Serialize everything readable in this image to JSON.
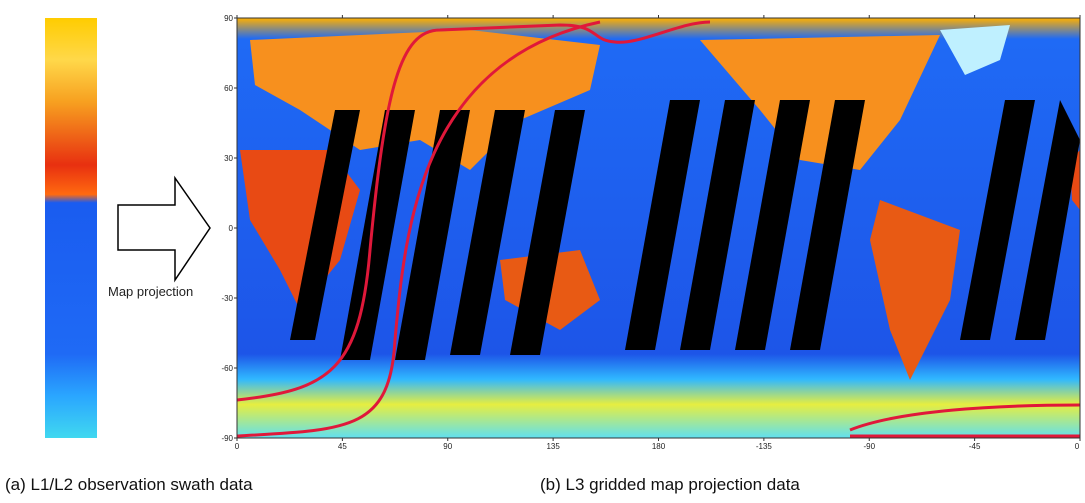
{
  "swath": {
    "caption": "(a) L1/L2 observation swath data"
  },
  "arrow_label": "Map projection",
  "map": {
    "caption": "(b) L3 gridded map projection data",
    "lat_ticks": [
      90,
      60,
      30,
      0,
      -30,
      -60,
      -90
    ],
    "lon_ticks": [
      0,
      45,
      90,
      135,
      180,
      -135,
      -90,
      -45,
      0
    ]
  }
}
